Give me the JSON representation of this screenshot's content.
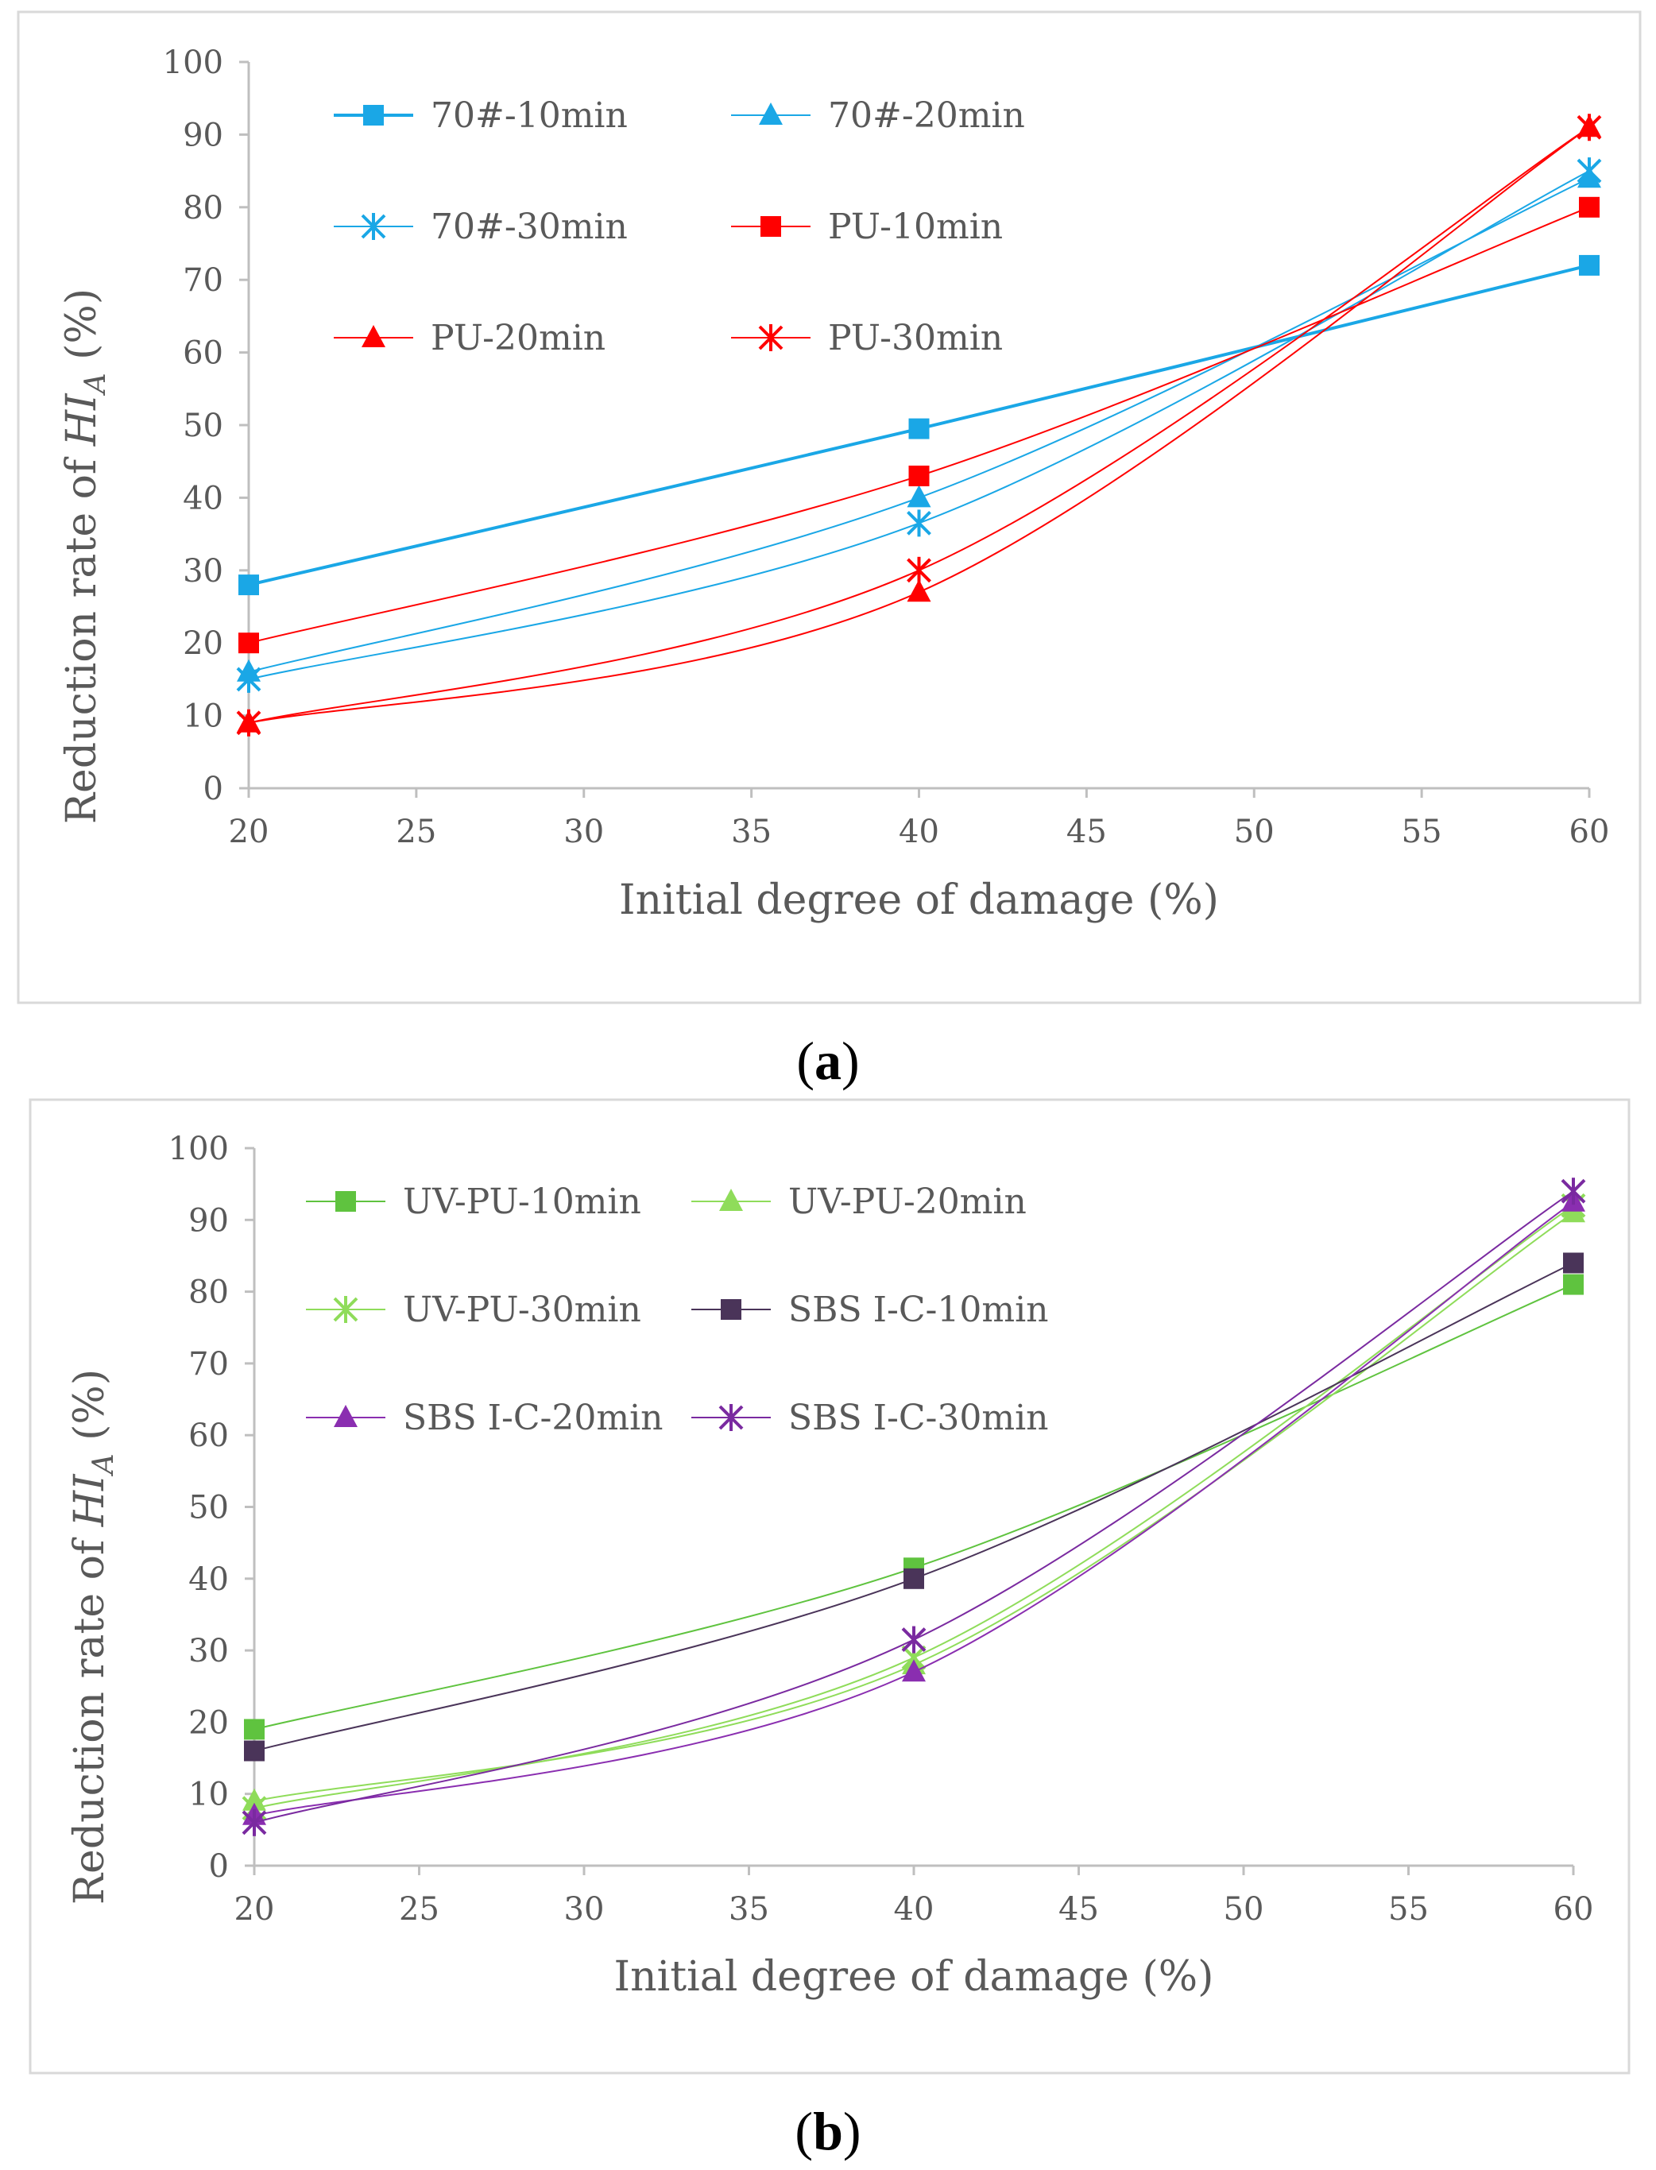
{
  "chart_data": [
    {
      "type": "line",
      "panel_label": "a",
      "xlabel": "Initial degree of damage (%)",
      "ylabel_prefix": "Reduction rate of ",
      "ylabel_var": "HI",
      "ylabel_sub": "A",
      "ylabel_suffix": " (%)",
      "xlim": [
        20,
        60
      ],
      "ylim": [
        0,
        100
      ],
      "xticks": [
        20,
        25,
        30,
        35,
        40,
        45,
        50,
        55,
        60
      ],
      "yticks": [
        0,
        10,
        20,
        30,
        40,
        50,
        60,
        70,
        80,
        90,
        100
      ],
      "x": [
        20,
        40,
        60
      ],
      "series": [
        {
          "name": "70#-10min",
          "values": [
            28,
            49.5,
            72
          ],
          "color": "#1aa7e6",
          "marker": "square",
          "bold": true
        },
        {
          "name": "70#-20min",
          "values": [
            16,
            40,
            84
          ],
          "color": "#1aa7e6",
          "marker": "triangle",
          "bold": false
        },
        {
          "name": "70#-30min",
          "values": [
            15,
            36.5,
            85
          ],
          "color": "#1aa7e6",
          "marker": "star",
          "bold": false
        },
        {
          "name": "PU-10min",
          "values": [
            20,
            43,
            80
          ],
          "color": "#ff0000",
          "marker": "square",
          "bold": false
        },
        {
          "name": "PU-20min",
          "values": [
            9,
            27,
            91
          ],
          "color": "#ff0000",
          "marker": "triangle",
          "bold": false
        },
        {
          "name": "PU-30min",
          "values": [
            9,
            30,
            91
          ],
          "color": "#ff0000",
          "marker": "star",
          "bold": false
        }
      ]
    },
    {
      "type": "line",
      "panel_label": "b",
      "xlabel": "Initial degree of damage (%)",
      "ylabel_prefix": "Reduction rate of ",
      "ylabel_var": "HI",
      "ylabel_sub": "A",
      "ylabel_suffix": " (%)",
      "xlim": [
        20,
        60
      ],
      "ylim": [
        0,
        100
      ],
      "xticks": [
        20,
        25,
        30,
        35,
        40,
        45,
        50,
        55,
        60
      ],
      "yticks": [
        0,
        10,
        20,
        30,
        40,
        50,
        60,
        70,
        80,
        90,
        100
      ],
      "x": [
        20,
        40,
        60
      ],
      "series": [
        {
          "name": "UV-PU-10min",
          "values": [
            19,
            41.5,
            81
          ],
          "color": "#5fc33f",
          "marker": "square",
          "bold": false
        },
        {
          "name": "UV-PU-20min",
          "values": [
            9,
            28,
            91
          ],
          "color": "#8fdc5a",
          "marker": "triangle",
          "bold": false
        },
        {
          "name": "UV-PU-30min",
          "values": [
            8,
            29,
            92
          ],
          "color": "#8fdc5a",
          "marker": "star",
          "bold": false
        },
        {
          "name": "SBS I-C-10min",
          "values": [
            16,
            40,
            84
          ],
          "color": "#4a3459",
          "marker": "square",
          "bold": false
        },
        {
          "name": "SBS I-C-20min",
          "values": [
            7,
            27,
            92.5
          ],
          "color": "#8a2eb0",
          "marker": "triangle",
          "bold": false
        },
        {
          "name": "SBS I-C-30min",
          "values": [
            6,
            31.5,
            94
          ],
          "color": "#7a2aa0",
          "marker": "star",
          "bold": false
        }
      ]
    }
  ]
}
